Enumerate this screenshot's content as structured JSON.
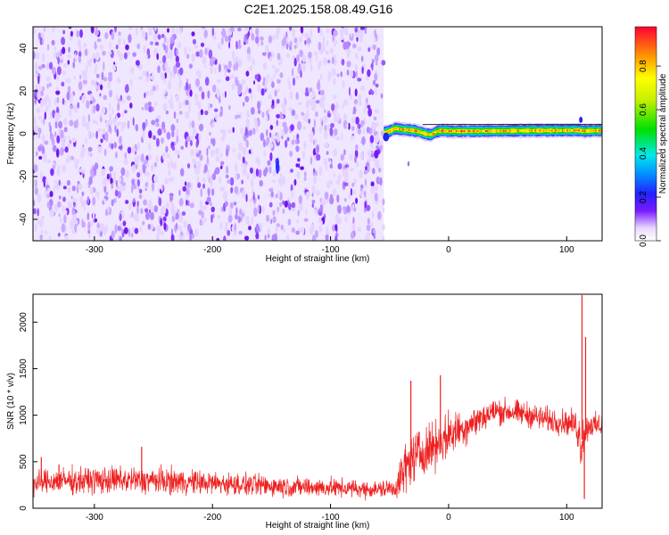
{
  "title": "C2E1.2025.158.08.49.G16",
  "chart_data": [
    {
      "type": "heatmap",
      "name": "spectrogram",
      "xlabel": "Height of straight line (km)",
      "ylabel": "Frequency (Hz)",
      "xlim": [
        -352,
        130
      ],
      "ylim": [
        -50,
        50
      ],
      "xticks": [
        -300,
        -200,
        -100,
        0,
        100
      ],
      "yticks": [
        -40,
        -20,
        0,
        20,
        40
      ],
      "noise_region_x": [
        -352,
        -55
      ],
      "signal_band": {
        "x": [
          -55,
          130
        ],
        "center_freq": [
          [
            -55,
            0.5
          ],
          [
            -50,
            1.2
          ],
          [
            -45,
            2.5
          ],
          [
            -40,
            2.0
          ],
          [
            -35,
            1.8
          ],
          [
            -30,
            1.5
          ],
          [
            -25,
            1.0
          ],
          [
            -20,
            0.0
          ],
          [
            -15,
            -0.5
          ],
          [
            -10,
            1.0
          ],
          [
            -5,
            1.5
          ],
          [
            0,
            1.2
          ],
          [
            20,
            1.2
          ],
          [
            40,
            1.3
          ],
          [
            60,
            1.4
          ],
          [
            80,
            1.5
          ],
          [
            100,
            1.5
          ],
          [
            110,
            1.6
          ],
          [
            115,
            1.2
          ],
          [
            120,
            1.4
          ],
          [
            130,
            1.5
          ]
        ]
      },
      "colorbar": {
        "label": "Normalized spectral amplitude",
        "ticks": [
          "0.0",
          "0.2",
          "0.4",
          "0.6",
          "0.8"
        ],
        "range": [
          0,
          0.98
        ]
      }
    },
    {
      "type": "line",
      "name": "snr",
      "xlabel": "Height of straight line (km)",
      "ylabel": "SNR (10 * v/v)",
      "xlim": [
        -352,
        130
      ],
      "ylim": [
        0,
        2300
      ],
      "xticks": [
        -300,
        -200,
        -100,
        0,
        100
      ],
      "yticks": [
        0,
        500,
        1000,
        1500,
        2000
      ],
      "color": "#ee2020",
      "envelope": {
        "x": [
          -352,
          -340,
          -300,
          -250,
          -200,
          -150,
          -100,
          -60,
          -45,
          -38,
          -30,
          -20,
          -10,
          0,
          10,
          20,
          30,
          40,
          50,
          60,
          70,
          80,
          90,
          100,
          108,
          112,
          116,
          120,
          125,
          130
        ],
        "mid": [
          260,
          290,
          300,
          300,
          270,
          240,
          220,
          200,
          220,
          400,
          550,
          620,
          700,
          780,
          850,
          920,
          990,
          1040,
          1040,
          1020,
          1000,
          960,
          940,
          920,
          900,
          700,
          850,
          900,
          880,
          900
        ],
        "amp": [
          110,
          120,
          130,
          130,
          110,
          100,
          90,
          80,
          100,
          250,
          230,
          230,
          220,
          220,
          180,
          160,
          140,
          130,
          120,
          120,
          120,
          120,
          120,
          120,
          130,
          300,
          150,
          120,
          120,
          120
        ]
      },
      "spikes": [
        [
          -352,
          480
        ],
        [
          -345,
          550
        ],
        [
          -330,
          470
        ],
        [
          -260,
          660
        ],
        [
          -32,
          1370
        ],
        [
          -7,
          1430
        ],
        [
          113,
          2290
        ],
        [
          115,
          100
        ],
        [
          116,
          1840
        ]
      ]
    }
  ]
}
